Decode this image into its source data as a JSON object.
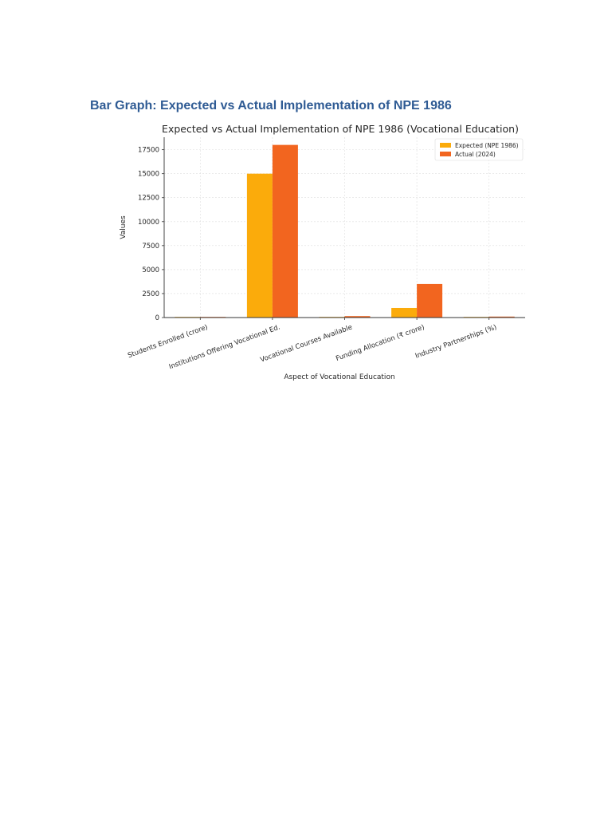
{
  "document": {
    "heading": "Bar Graph: Expected vs Actual Implementation of NPE 1986"
  },
  "colors": {
    "heading": "#2f5b94",
    "expected": "#fbab0b",
    "actual": "#f2651f",
    "grid": "#dedede",
    "axis": "#333333"
  },
  "chart_data": {
    "type": "bar",
    "title": "Expected vs Actual Implementation of NPE 1986 (Vocational Education)",
    "xlabel": "Aspect of Vocational Education",
    "ylabel": "Values",
    "categories": [
      "Students Enrolled (crore)",
      "Institutions Offering Vocational Ed.",
      "Vocational Courses Available",
      "Funding Allocation (₹ crore)",
      "Industry Partnerships (%)"
    ],
    "series": [
      {
        "name": "Expected (NPE 1986)",
        "color": "#fbab0b",
        "values": [
          5,
          15000,
          50,
          1000,
          20
        ]
      },
      {
        "name": "Actual (2024)",
        "color": "#f2651f",
        "values": [
          3,
          18000,
          150,
          3500,
          100
        ]
      }
    ],
    "ylim": [
      0,
      18800
    ],
    "yticks": [
      0,
      2500,
      5000,
      7500,
      10000,
      12500,
      15000,
      17500
    ],
    "yticklabels": [
      "0",
      "2500",
      "5000",
      "7500",
      "10000",
      "12500",
      "15000",
      "17500"
    ],
    "grid": true,
    "legend_position": "top-right"
  }
}
